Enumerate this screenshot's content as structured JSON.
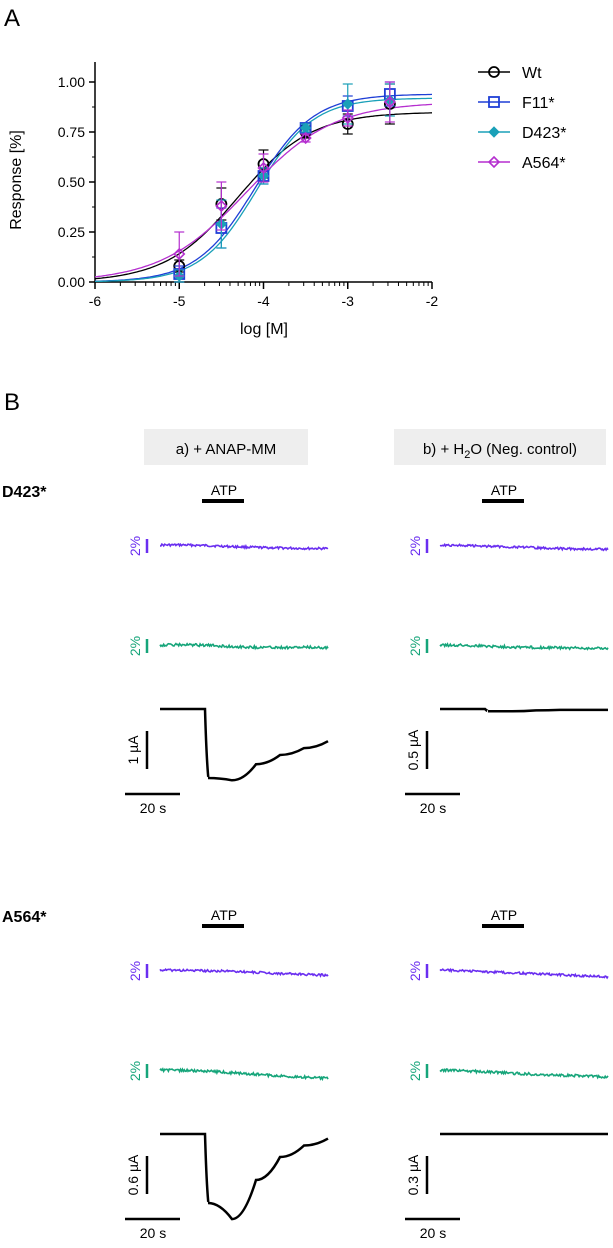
{
  "panel_a_label": "A",
  "panel_b_label": "B",
  "chart_data": [
    {
      "type": "scatter",
      "title": "",
      "xlabel": "log [M]",
      "ylabel": "Response [%]",
      "xlim": [
        -6,
        -2
      ],
      "ylim": [
        0,
        1.1
      ],
      "xticks": [
        "-6",
        "-5",
        "-4",
        "-3",
        "-2"
      ],
      "yticks": [
        "0.00",
        "0.25",
        "0.50",
        "0.75",
        "1.00"
      ],
      "legend_position": "right",
      "grid": false,
      "series": [
        {
          "name": "Wt",
          "color": "#000000",
          "marker": "circle",
          "x": [
            -5,
            -4.5,
            -4,
            -3.5,
            -3,
            -2.5
          ],
          "y": [
            0.08,
            0.39,
            0.59,
            0.75,
            0.79,
            0.89
          ],
          "err": [
            0.03,
            0.08,
            0.07,
            0.03,
            0.05,
            0.1
          ],
          "fit": {
            "bottom": 0.0,
            "top": 0.85,
            "ec50": -4.3,
            "hill": 1.0
          }
        },
        {
          "name": "F11*",
          "color": "#1f3fd6",
          "marker": "square",
          "x": [
            -5,
            -4.5,
            -4,
            -3.5,
            -3,
            -2.5
          ],
          "y": [
            0.04,
            0.27,
            0.53,
            0.77,
            0.88,
            0.94
          ],
          "err": [
            0.04,
            0.1,
            0.04,
            0.02,
            0.05,
            0.06
          ],
          "fit": {
            "bottom": 0.0,
            "top": 0.94,
            "ec50": -4.1,
            "hill": 1.25
          }
        },
        {
          "name": "D423*",
          "color": "#1aa0b8",
          "marker": "diamond",
          "x": [
            -5,
            -4.5,
            -4,
            -3.5,
            -3,
            -2.5
          ],
          "y": [
            0.03,
            0.29,
            0.53,
            0.77,
            0.89,
            0.91
          ],
          "err": [
            0.03,
            0.12,
            0.04,
            0.02,
            0.1,
            0.08
          ],
          "fit": {
            "bottom": 0.0,
            "top": 0.92,
            "ec50": -4.08,
            "hill": 1.3
          }
        },
        {
          "name": "A564*",
          "color": "#b52fcf",
          "marker": "diamond-open",
          "x": [
            -5,
            -4.5,
            -4,
            -3.5,
            -3,
            -2.5
          ],
          "y": [
            0.14,
            0.38,
            0.57,
            0.72,
            0.82,
            0.9
          ],
          "err": [
            0.11,
            0.12,
            0.07,
            0.02,
            0.04,
            0.1
          ],
          "fit": {
            "bottom": 0.0,
            "top": 0.9,
            "ec50": -4.2,
            "hill": 0.85
          }
        }
      ]
    },
    {
      "type": "line",
      "columns": [
        {
          "prefix": "a) + ANAP-MM",
          "sub": "",
          "suffix": ""
        },
        {
          "prefix": "b) + H",
          "sub": "2",
          "suffix": "O (Neg. control)"
        }
      ],
      "stimulus_label": "ATP",
      "time_scale_label": "20 s",
      "fluo_scale_label": "2%",
      "colors": {
        "purple": "#6a2ef0",
        "green": "#16a57a",
        "current": "#000000"
      },
      "rows": [
        {
          "name": "D423*",
          "current_scale_labels": [
            "1 µA",
            "0.5 µA"
          ],
          "traces": [
            {
              "col": 0,
              "purple": [
                0,
                0,
                -0.15,
                -0.4,
                -0.6,
                -0.75,
                -0.85,
                -0.9
              ],
              "green": [
                0,
                0.05,
                -0.1,
                -0.4,
                -0.55,
                -0.6,
                -0.6,
                -0.6
              ],
              "current": [
                0,
                0,
                -1.5,
                -1.55,
                -1.2,
                -1.0,
                -0.85,
                -0.7
              ]
            },
            {
              "col": 1,
              "purple": [
                0,
                -0.1,
                -0.3,
                -0.5,
                -0.7,
                -0.9,
                -1.0,
                -1.1
              ],
              "green": [
                0,
                -0.1,
                -0.3,
                -0.5,
                -0.6,
                -0.7,
                -0.8,
                -0.85
              ],
              "current": [
                0,
                0,
                -0.05,
                -0.05,
                -0.03,
                -0.02,
                -0.02,
                -0.02
              ]
            }
          ]
        },
        {
          "name": "A564*",
          "current_scale_labels": [
            "0.6 µA",
            "0.3 µA"
          ],
          "traces": [
            {
              "col": 0,
              "purple": [
                0,
                -0.1,
                -0.2,
                -0.3,
                -0.6,
                -0.9,
                -1.1,
                -1.3
              ],
              "green": [
                0,
                -0.1,
                -0.3,
                -0.7,
                -1.1,
                -1.5,
                -1.8,
                -2.1
              ],
              "current": [
                0,
                0,
                -1.5,
                -1.85,
                -1.0,
                -0.5,
                -0.25,
                -0.1
              ]
            },
            {
              "col": 1,
              "purple": [
                0,
                -0.2,
                -0.45,
                -0.7,
                -0.95,
                -1.2,
                -1.45,
                -1.7
              ],
              "green": [
                0,
                -0.2,
                -0.5,
                -0.8,
                -1.1,
                -1.3,
                -1.5,
                -1.7
              ],
              "current": [
                0,
                0,
                0,
                0,
                0,
                0,
                0,
                0
              ]
            }
          ]
        }
      ]
    }
  ]
}
